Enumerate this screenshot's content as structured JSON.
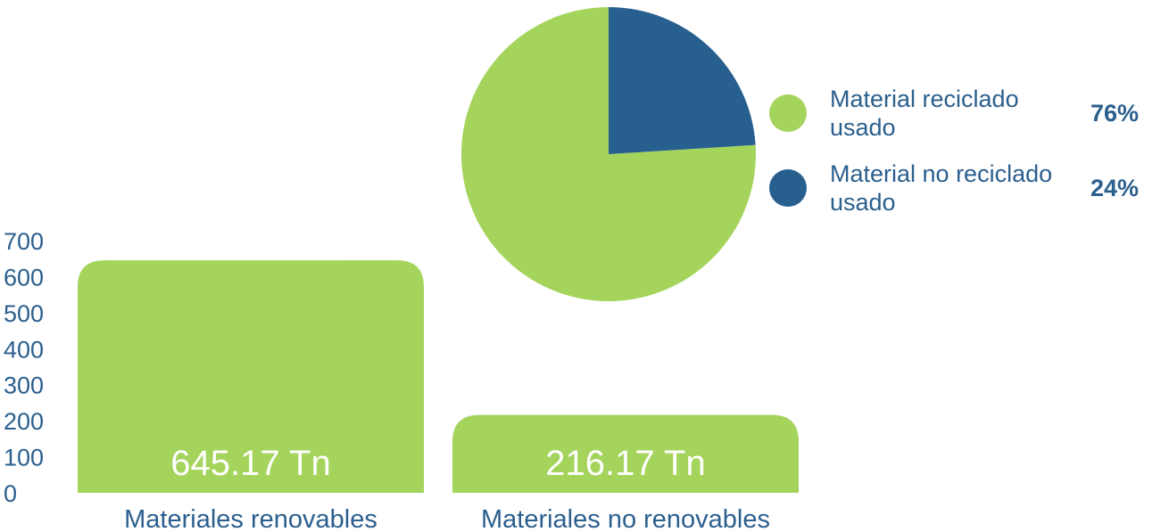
{
  "chart_data": [
    {
      "type": "bar",
      "categories": [
        "Materiales renovables",
        "Materiales no renovables"
      ],
      "values": [
        645.17,
        216.17
      ],
      "data_labels": [
        "645.17 Tn",
        "216.17 Tn"
      ],
      "ylim": [
        0,
        700
      ],
      "yticks": [
        "0",
        "100",
        "200",
        "300",
        "400",
        "500",
        "600",
        "700"
      ],
      "grid": false,
      "colors": {
        "bar": "#a4d45c",
        "text": "#2b5f8e",
        "label": "#ffffff"
      }
    },
    {
      "type": "pie",
      "slices": [
        {
          "label": "Material reciclado usado",
          "value": 76,
          "display": "76%",
          "color": "#a4d45c"
        },
        {
          "label": "Material no reciclado usado",
          "value": 24,
          "display": "24%",
          "color": "#275f8f"
        }
      ],
      "legend_placement": "right"
    }
  ]
}
